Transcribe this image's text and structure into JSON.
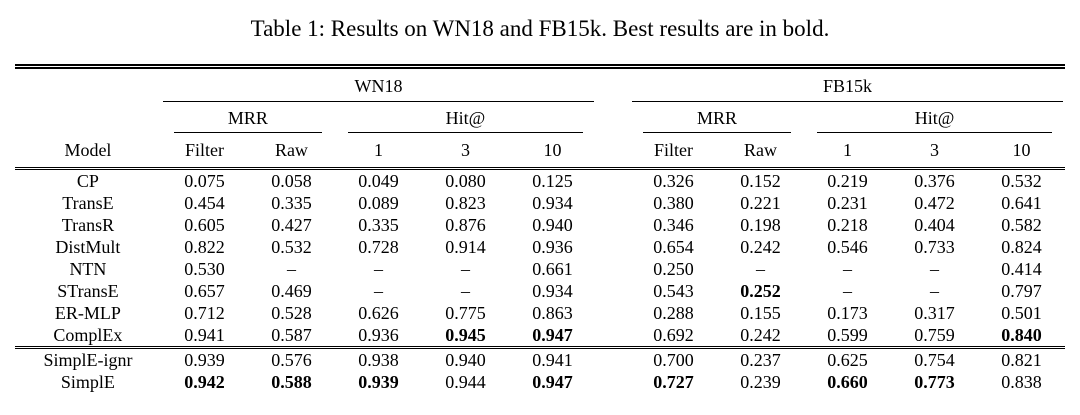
{
  "title": "Table 1: Results on WN18 and FB15k. Best results are in bold.",
  "table": {
    "model_header": "Model",
    "groups": [
      {
        "name": "WN18",
        "mrr_label": "MRR",
        "hit_label": "Hit@",
        "columns": [
          "Filter",
          "Raw",
          "1",
          "3",
          "10"
        ]
      },
      {
        "name": "FB15k",
        "mrr_label": "MRR",
        "hit_label": "Hit@",
        "columns": [
          "Filter",
          "Raw",
          "1",
          "3",
          "10"
        ]
      }
    ],
    "baseline_rows": [
      {
        "model": "CP",
        "values": [
          "0.075",
          "0.058",
          "0.049",
          "0.080",
          "0.125",
          "0.326",
          "0.152",
          "0.219",
          "0.376",
          "0.532"
        ],
        "bold": []
      },
      {
        "model": "TransE",
        "values": [
          "0.454",
          "0.335",
          "0.089",
          "0.823",
          "0.934",
          "0.380",
          "0.221",
          "0.231",
          "0.472",
          "0.641"
        ],
        "bold": []
      },
      {
        "model": "TransR",
        "values": [
          "0.605",
          "0.427",
          "0.335",
          "0.876",
          "0.940",
          "0.346",
          "0.198",
          "0.218",
          "0.404",
          "0.582"
        ],
        "bold": []
      },
      {
        "model": "DistMult",
        "values": [
          "0.822",
          "0.532",
          "0.728",
          "0.914",
          "0.936",
          "0.654",
          "0.242",
          "0.546",
          "0.733",
          "0.824"
        ],
        "bold": []
      },
      {
        "model": "NTN",
        "values": [
          "0.530",
          "–",
          "–",
          "–",
          "0.661",
          "0.250",
          "–",
          "–",
          "–",
          "0.414"
        ],
        "bold": []
      },
      {
        "model": "STransE",
        "values": [
          "0.657",
          "0.469",
          "–",
          "–",
          "0.934",
          "0.543",
          "0.252",
          "–",
          "–",
          "0.797"
        ],
        "bold": [
          6
        ]
      },
      {
        "model": "ER-MLP",
        "values": [
          "0.712",
          "0.528",
          "0.626",
          "0.775",
          "0.863",
          "0.288",
          "0.155",
          "0.173",
          "0.317",
          "0.501"
        ],
        "bold": []
      },
      {
        "model": "ComplEx",
        "values": [
          "0.941",
          "0.587",
          "0.936",
          "0.945",
          "0.947",
          "0.692",
          "0.242",
          "0.599",
          "0.759",
          "0.840"
        ],
        "bold": [
          3,
          4,
          9
        ]
      }
    ],
    "simple_rows": [
      {
        "model": "SimplE-ignr",
        "values": [
          "0.939",
          "0.576",
          "0.938",
          "0.940",
          "0.941",
          "0.700",
          "0.237",
          "0.625",
          "0.754",
          "0.821"
        ],
        "bold": []
      },
      {
        "model": "SimplE",
        "values": [
          "0.942",
          "0.588",
          "0.939",
          "0.944",
          "0.947",
          "0.727",
          "0.239",
          "0.660",
          "0.773",
          "0.838"
        ],
        "bold": [
          0,
          1,
          2,
          4,
          5,
          7,
          8
        ]
      }
    ]
  }
}
